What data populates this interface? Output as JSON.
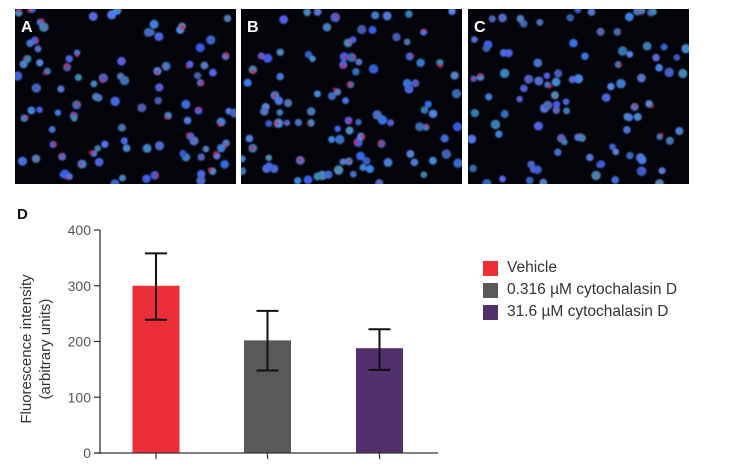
{
  "panels": [
    {
      "label": "A",
      "description": "fluorescence micrograph, blue nuclei with red staining"
    },
    {
      "label": "B",
      "description": "fluorescence micrograph, blue nuclei with moderate red staining"
    },
    {
      "label": "C",
      "description": "fluorescence micrograph, blue nuclei with little red staining"
    }
  ],
  "chart_label": "D",
  "colors": {
    "vehicle": "#ee2e36",
    "low": "#58595b",
    "high": "#52306e"
  },
  "chart_data": {
    "type": "bar",
    "title": "",
    "xlabel": "",
    "ylabel": "Fluorescence intensity (arbitrary units)",
    "ylabel_line1": "Fluorescence intensity",
    "ylabel_line2": "(arbitrary units)",
    "ylim": [
      0,
      400
    ],
    "yticks": [
      0,
      100,
      200,
      300,
      400
    ],
    "categories": [
      "Vehicle",
      "0.316 µM cytochalasin D",
      "31.6 µM cytochalasin D"
    ],
    "values": [
      300,
      202,
      188
    ],
    "error_upper": [
      358,
      255,
      222
    ],
    "error_lower": [
      239,
      148,
      149
    ],
    "legend_position": "right",
    "grid": false
  },
  "legend": [
    {
      "label": "Vehicle",
      "color": "#ee2e36"
    },
    {
      "label": "0.316 µM cytochalasin D",
      "color": "#58595b"
    },
    {
      "label": "31.6 µM cytochalasin D",
      "color": "#52306e"
    }
  ]
}
